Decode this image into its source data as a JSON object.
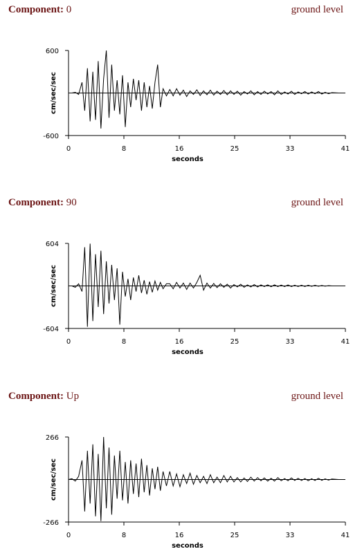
{
  "chart_data": [
    {
      "type": "line",
      "component_label": "Component:",
      "component": "0",
      "level": "ground level",
      "ylabel": "cm/sec/sec",
      "xlabel": "seconds",
      "color": "#000000",
      "xlim": [
        0,
        41
      ],
      "ylim": [
        -600,
        600
      ],
      "xticks": [
        0,
        {
          "value": 8.2,
          "label": "8"
        },
        {
          "value": 16.4,
          "label": "16"
        },
        {
          "value": 24.6,
          "label": "25"
        },
        {
          "value": 32.8,
          "label": "33"
        },
        41
      ],
      "yticks": [
        -600,
        600
      ],
      "x": [
        0,
        0.5,
        1,
        1.5,
        2,
        2.4,
        2.8,
        3.2,
        3.6,
        4,
        4.4,
        4.8,
        5.2,
        5.6,
        6,
        6.4,
        6.8,
        7.2,
        7.6,
        8,
        8.4,
        8.8,
        9.2,
        9.6,
        10,
        10.4,
        10.8,
        11.2,
        11.6,
        12,
        12.4,
        12.8,
        13.2,
        13.6,
        14,
        14.5,
        15,
        15.5,
        16,
        16.5,
        17,
        17.5,
        18,
        18.5,
        19,
        19.5,
        20,
        20.5,
        21,
        21.5,
        22,
        22.5,
        23,
        23.5,
        24,
        24.5,
        25,
        25.5,
        26,
        26.5,
        27,
        27.5,
        28,
        28.5,
        29,
        29.5,
        30,
        30.5,
        31,
        31.5,
        32,
        32.5,
        33,
        33.5,
        34,
        34.5,
        35,
        35.5,
        36,
        36.5,
        37,
        37.5,
        38,
        38.5,
        39,
        40
      ],
      "values": [
        0,
        0,
        10,
        -20,
        150,
        -250,
        350,
        -400,
        300,
        -380,
        450,
        -500,
        200,
        600,
        -350,
        400,
        -250,
        180,
        -300,
        250,
        -480,
        150,
        -200,
        200,
        -100,
        180,
        -250,
        150,
        -200,
        100,
        -220,
        150,
        400,
        -200,
        60,
        -40,
        50,
        -40,
        60,
        -30,
        40,
        -50,
        30,
        -20,
        45,
        -35,
        30,
        -25,
        40,
        -30,
        25,
        -20,
        35,
        -25,
        30,
        -20,
        25,
        -30,
        20,
        -15,
        30,
        -25,
        20,
        -20,
        25,
        -15,
        20,
        -25,
        30,
        -20,
        15,
        -15,
        25,
        -20,
        15,
        -10,
        20,
        -15,
        15,
        -10,
        20,
        -15,
        10,
        -10,
        5,
        0
      ]
    },
    {
      "type": "line",
      "component_label": "Component:",
      "component": "90",
      "level": "ground level",
      "ylabel": "cm/sec/sec",
      "xlabel": "seconds",
      "color": "#000000",
      "xlim": [
        0,
        41
      ],
      "ylim": [
        -604,
        604
      ],
      "xticks": [
        0,
        {
          "value": 8.2,
          "label": "8"
        },
        {
          "value": 16.4,
          "label": "16"
        },
        {
          "value": 24.6,
          "label": "25"
        },
        {
          "value": 32.8,
          "label": "33"
        },
        41
      ],
      "yticks": [
        -604,
        604
      ],
      "x": [
        0,
        0.5,
        1,
        1.5,
        2,
        2.4,
        2.8,
        3.2,
        3.6,
        4,
        4.4,
        4.8,
        5.2,
        5.6,
        6,
        6.4,
        6.8,
        7.2,
        7.6,
        8,
        8.4,
        8.8,
        9.2,
        9.6,
        10,
        10.4,
        10.8,
        11.2,
        11.6,
        12,
        12.4,
        12.8,
        13.2,
        13.6,
        14,
        14.5,
        15,
        15.5,
        16,
        16.5,
        17,
        17.5,
        18,
        18.5,
        19,
        19.5,
        20,
        20.5,
        21,
        21.5,
        22,
        22.5,
        23,
        23.5,
        24,
        24.5,
        25,
        25.5,
        26,
        26.5,
        27,
        27.5,
        28,
        28.5,
        29,
        29.5,
        30,
        30.5,
        31,
        31.5,
        32,
        32.5,
        33,
        33.5,
        34,
        34.5,
        35,
        35.5,
        36,
        36.5,
        37,
        37.5,
        38,
        38.5,
        39,
        40
      ],
      "values": [
        0,
        0,
        -20,
        30,
        -80,
        550,
        -580,
        600,
        -500,
        450,
        -300,
        500,
        -400,
        350,
        -250,
        300,
        -200,
        250,
        -550,
        200,
        -150,
        100,
        -200,
        120,
        -80,
        150,
        -100,
        80,
        -120,
        60,
        -90,
        70,
        -60,
        50,
        -40,
        30,
        30,
        -40,
        50,
        -30,
        40,
        -50,
        40,
        -30,
        50,
        150,
        -60,
        40,
        -30,
        35,
        -25,
        30,
        -20,
        25,
        -30,
        20,
        -15,
        25,
        -20,
        15,
        -15,
        20,
        -15,
        15,
        -10,
        15,
        -12,
        15,
        -10,
        12,
        -10,
        15,
        -10,
        10,
        -8,
        10,
        -8,
        10,
        -6,
        8,
        -5,
        6,
        -4,
        4,
        0,
        0
      ]
    },
    {
      "type": "line",
      "component_label": "Component:",
      "component": "Up",
      "level": "ground level",
      "ylabel": "cm/sec/sec",
      "xlabel": "seconds",
      "color": "#000000",
      "xlim": [
        0,
        41
      ],
      "ylim": [
        -266,
        266
      ],
      "xticks": [
        0,
        {
          "value": 8.2,
          "label": "8"
        },
        {
          "value": 16.4,
          "label": "16"
        },
        {
          "value": 24.6,
          "label": "25"
        },
        {
          "value": 32.8,
          "label": "33"
        },
        41
      ],
      "yticks": [
        -266,
        266
      ],
      "x": [
        0,
        0.5,
        1,
        1.5,
        2,
        2.4,
        2.8,
        3.2,
        3.6,
        4,
        4.4,
        4.8,
        5.2,
        5.6,
        6,
        6.4,
        6.8,
        7.2,
        7.6,
        8,
        8.4,
        8.8,
        9.2,
        9.6,
        10,
        10.4,
        10.8,
        11.2,
        11.6,
        12,
        12.4,
        12.8,
        13.2,
        13.6,
        14,
        14.5,
        15,
        15.5,
        16,
        16.5,
        17,
        17.5,
        18,
        18.5,
        19,
        19.5,
        20,
        20.5,
        21,
        21.5,
        22,
        22.5,
        23,
        23.5,
        24,
        24.5,
        25,
        25.5,
        26,
        26.5,
        27,
        27.5,
        28,
        28.5,
        29,
        29.5,
        30,
        30.5,
        31,
        31.5,
        32,
        32.5,
        33,
        33.5,
        34,
        34.5,
        35,
        35.5,
        36,
        36.5,
        37,
        37.5,
        38,
        38.5,
        39,
        40
      ],
      "values": [
        0,
        5,
        -10,
        20,
        120,
        -200,
        180,
        -150,
        220,
        -230,
        160,
        -260,
        266,
        -180,
        200,
        -220,
        150,
        -120,
        180,
        -130,
        110,
        -150,
        120,
        -90,
        100,
        -110,
        130,
        -80,
        90,
        -100,
        70,
        -60,
        80,
        -70,
        50,
        -40,
        50,
        -40,
        35,
        -45,
        30,
        -25,
        40,
        -30,
        25,
        -20,
        20,
        -25,
        30,
        -20,
        15,
        -20,
        25,
        -15,
        20,
        -15,
        12,
        -15,
        10,
        -12,
        15,
        -10,
        12,
        -8,
        10,
        -10,
        8,
        -10,
        12,
        -8,
        6,
        -8,
        10,
        -6,
        8,
        -6,
        6,
        -8,
        5,
        -6,
        8,
        -5,
        4,
        -4,
        3,
        0
      ]
    }
  ]
}
